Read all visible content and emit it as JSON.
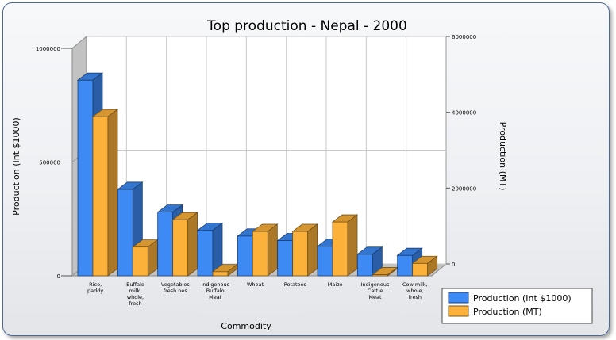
{
  "chart_data": {
    "type": "bar",
    "title": "Top production - Nepal - 2000",
    "xlabel": "Commodity",
    "ylabel": "Production (Int $1000)",
    "y2label": "Production (MT)",
    "ylim": [
      0,
      1000000
    ],
    "y2lim": [
      0,
      6000000
    ],
    "yticks": [
      "0",
      "500000",
      "1000000"
    ],
    "y2ticks": [
      "0",
      "2000000",
      "4000000",
      "6000000"
    ],
    "categories": [
      [
        "Rice,",
        "paddy"
      ],
      [
        "Buffalo",
        "milk,",
        "whole,",
        "fresh"
      ],
      [
        "Vegetables",
        "fresh nes"
      ],
      [
        "Indigenous",
        "Buffalo",
        "Meat"
      ],
      [
        "Wheat"
      ],
      [
        "Potatoes"
      ],
      [
        "Maize"
      ],
      [
        "Indigenous",
        "Cattle",
        "Meat"
      ],
      [
        "Cow milk,",
        "whole,",
        "fresh"
      ]
    ],
    "series": [
      {
        "name": "Production (Int $1000)",
        "axis": "left",
        "color": "#3d8af5",
        "values": [
          860000,
          380000,
          280000,
          200000,
          175000,
          155000,
          130000,
          95000,
          90000
        ]
      },
      {
        "name": "Production (MT)",
        "axis": "right",
        "color": "#fbb13a",
        "values": [
          4200000,
          760000,
          1480000,
          110000,
          1170000,
          1170000,
          1420000,
          30000,
          330000
        ]
      }
    ],
    "legend": "bottom-right"
  }
}
